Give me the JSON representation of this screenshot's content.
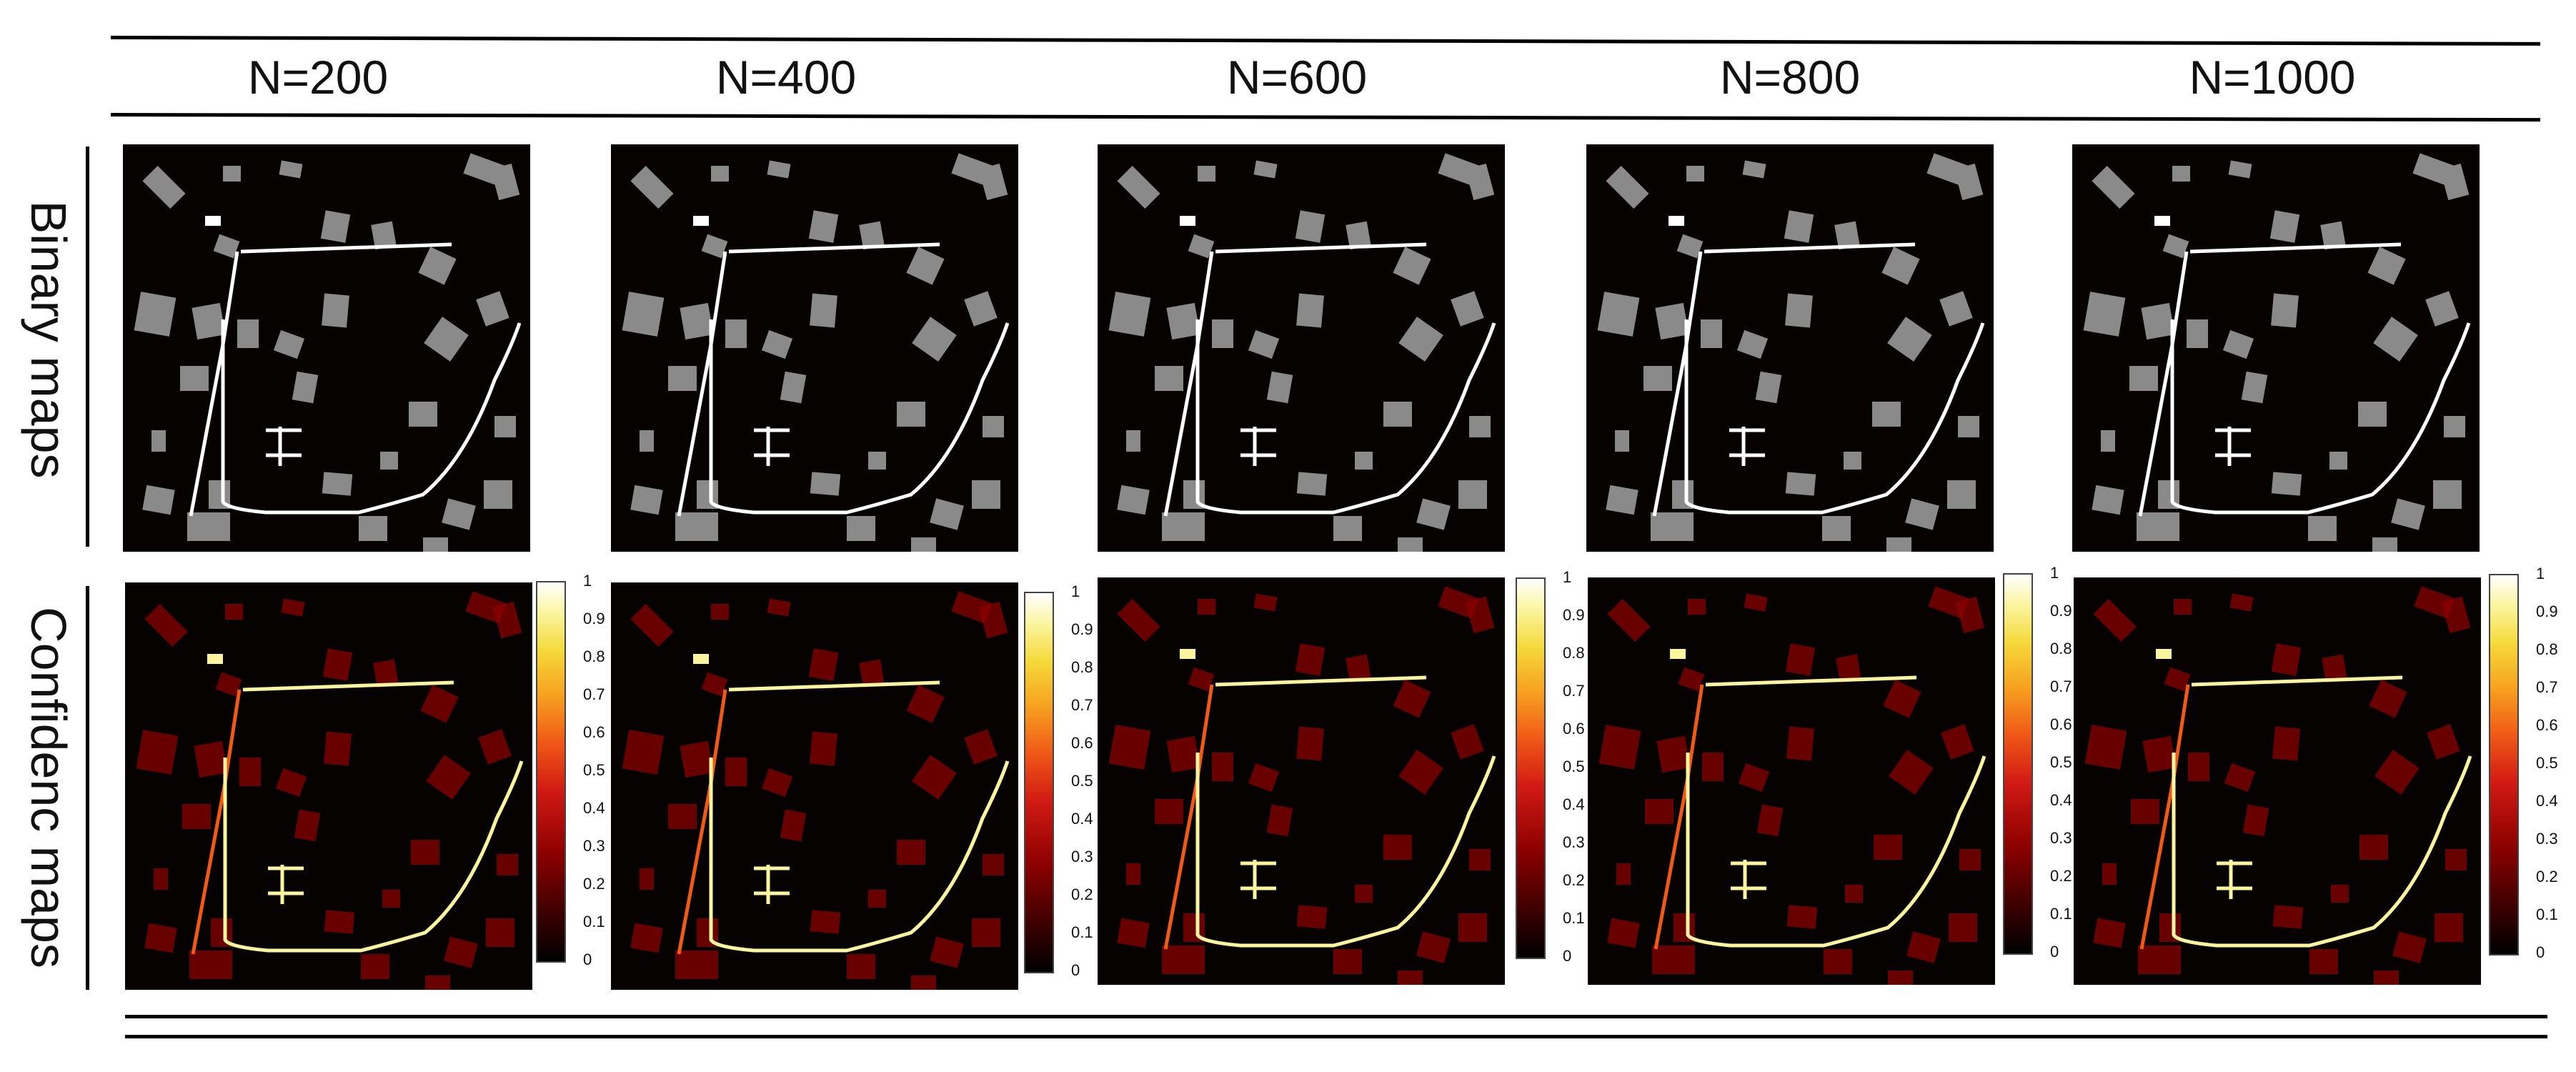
{
  "column_headers": [
    "N=200",
    "N=400",
    "N=600",
    "N=800",
    "N=1000"
  ],
  "row_labels": {
    "binary": "Binary  maps",
    "confidence": "Confidenc maps"
  },
  "colorbar_ticks": [
    "1",
    "0.9",
    "0.8",
    "0.7",
    "0.6",
    "0.5",
    "0.4",
    "0.3",
    "0.2",
    "0.1",
    "0"
  ],
  "colors": {
    "background": "#070202",
    "field": "#8a8a8a",
    "road": "#ffffff",
    "heat_low": "#8b0000",
    "heat_mid": "#f05a17",
    "heat_high": "#fbf5a0"
  }
}
